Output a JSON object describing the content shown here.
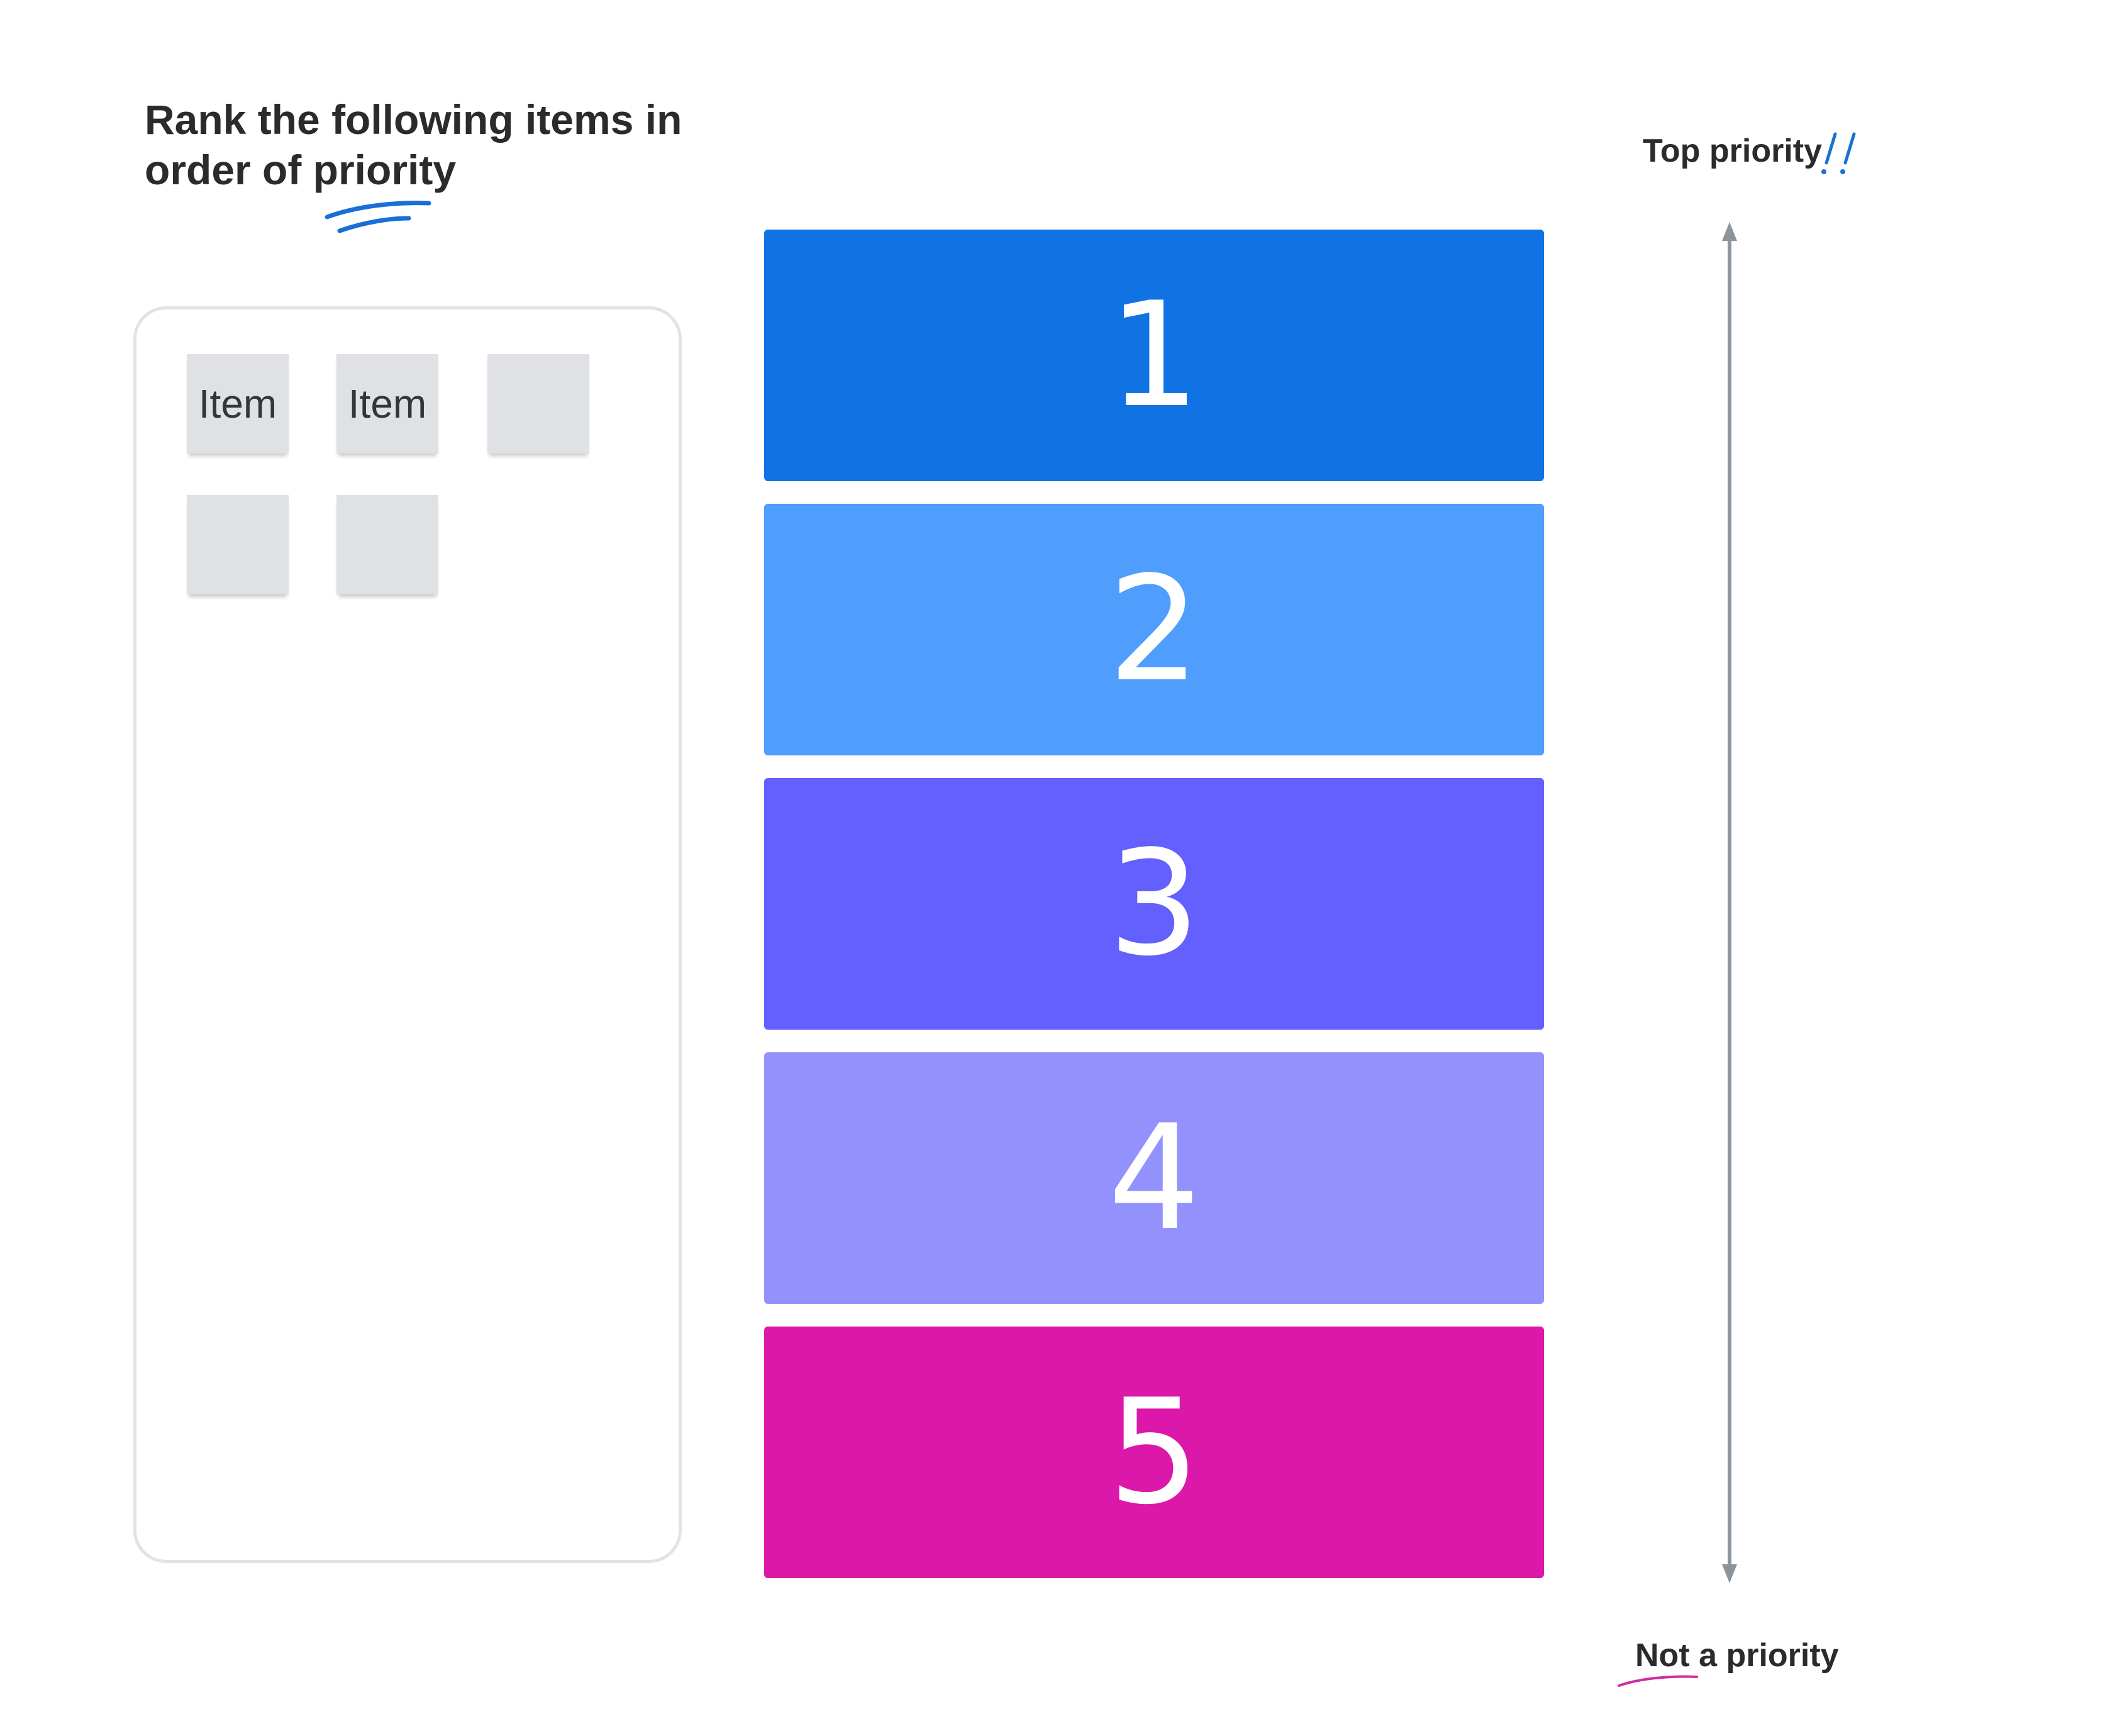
{
  "title": "Rank the following items in order of priority",
  "items": [
    {
      "label": "Item"
    },
    {
      "label": "Item"
    },
    {
      "label": ""
    },
    {
      "label": ""
    },
    {
      "label": ""
    }
  ],
  "ranks": [
    {
      "label": "1",
      "color": "#1173e3"
    },
    {
      "label": "2",
      "color": "#4f9dfd"
    },
    {
      "label": "3",
      "color": "#6360fe"
    },
    {
      "label": "4",
      "color": "#9392fd"
    },
    {
      "label": "5",
      "color": "#db18a9"
    }
  ],
  "scale": {
    "top_label": "Top priority",
    "bottom_label": "Not a priority"
  },
  "colors": {
    "sticky_note": "#dfe1e5",
    "panel_border": "#e2e3e6",
    "axis": "#8e949b",
    "accent_blue": "#1a6fd6",
    "accent_pink": "#d12aa0"
  }
}
